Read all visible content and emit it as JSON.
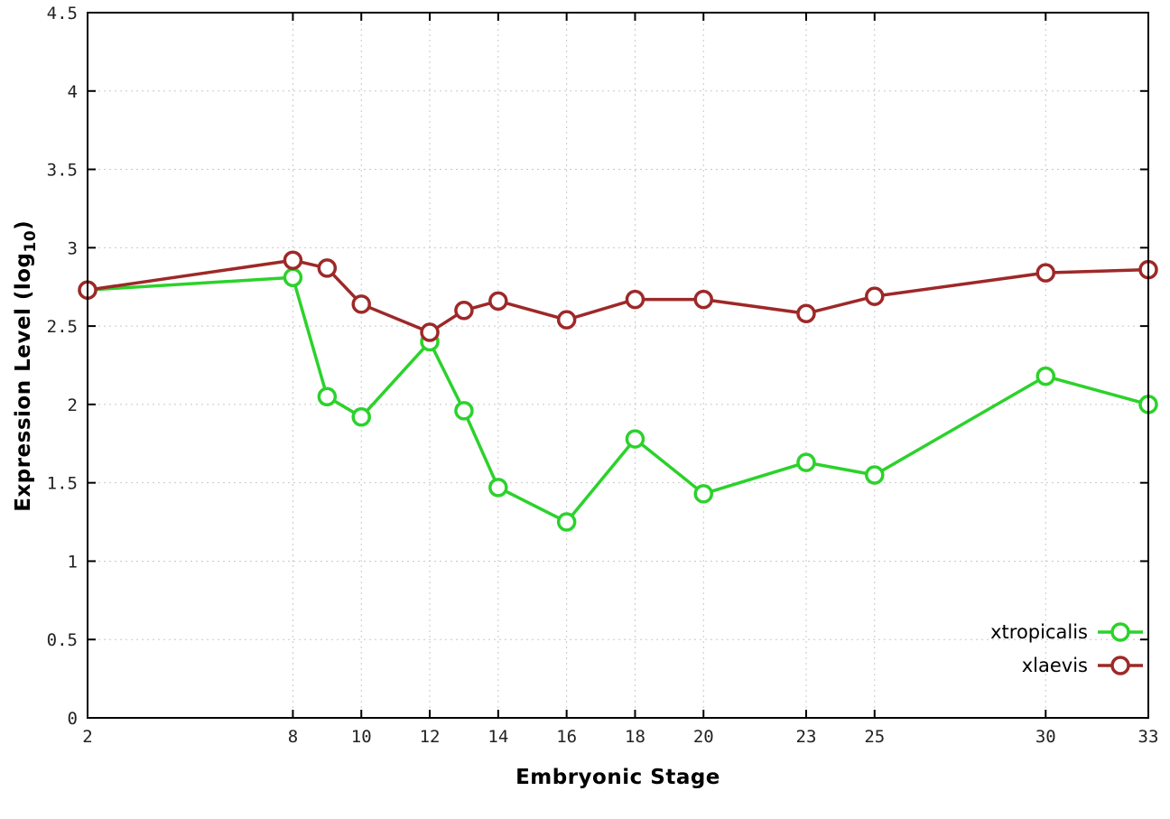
{
  "chart_data": {
    "type": "line",
    "title": "",
    "xlabel": "Embryonic Stage",
    "ylabel": "Expression Level (log10)",
    "ylabel_prefix": "Expression Level (log",
    "ylabel_sub": "10",
    "ylabel_suffix": ")",
    "xlim": [
      2,
      33
    ],
    "ylim": [
      0,
      4.5
    ],
    "grid": true,
    "legend_position": "bottom-right-inside",
    "x": [
      2,
      8,
      9,
      10,
      12,
      13,
      14,
      16,
      18,
      20,
      23,
      25,
      30,
      33
    ],
    "xtick_values": [
      2,
      8,
      10,
      12,
      14,
      16,
      18,
      20,
      23,
      25,
      30,
      33
    ],
    "xtick_labels": [
      "2",
      "8",
      "10",
      "12",
      "14",
      "16",
      "18",
      "20",
      "23",
      "25",
      "30",
      "33"
    ],
    "ytick_values": [
      0,
      0.5,
      1,
      1.5,
      2,
      2.5,
      3,
      3.5,
      4,
      4.5
    ],
    "ytick_labels": [
      "0",
      "0.5",
      "1",
      "1.5",
      "2",
      "2.5",
      "3",
      "3.5",
      "4",
      "4.5"
    ],
    "series": [
      {
        "name": "xtropicalis",
        "color": "#2bd22b",
        "values": [
          2.73,
          2.81,
          2.05,
          1.92,
          2.4,
          1.96,
          1.47,
          1.25,
          1.78,
          1.43,
          1.63,
          1.55,
          2.18,
          2.0
        ]
      },
      {
        "name": "xlaevis",
        "color": "#9e2828",
        "values": [
          2.73,
          2.92,
          2.87,
          2.64,
          2.46,
          2.6,
          2.66,
          2.54,
          2.67,
          2.67,
          2.58,
          2.69,
          2.84,
          2.86
        ]
      }
    ],
    "colors": {
      "plot_border": "#000000",
      "grid": "#c8c8c8",
      "tick_text": "#222222",
      "marker_fill": "#ffffff"
    }
  }
}
